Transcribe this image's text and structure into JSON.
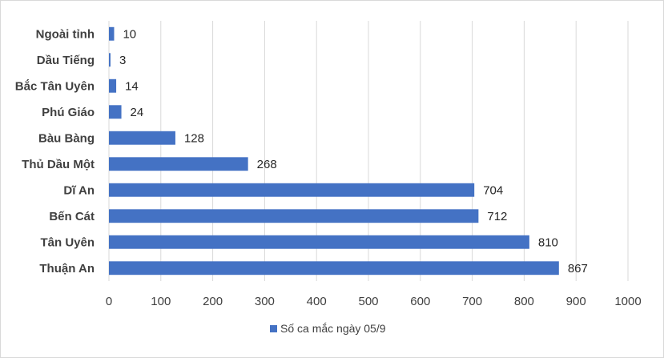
{
  "chart_data": {
    "type": "bar",
    "orientation": "horizontal",
    "categories": [
      "Ngoài tỉnh",
      "Dầu Tiếng",
      "Bắc Tân Uyên",
      "Phú Giáo",
      "Bàu Bàng",
      "Thủ Dầu Một",
      "Dĩ An",
      "Bến Cát",
      "Tân Uyên",
      "Thuận An"
    ],
    "series": [
      {
        "name": "Số ca mắc ngày 05/9",
        "values": [
          10,
          3,
          14,
          24,
          128,
          268,
          704,
          712,
          810,
          867
        ],
        "color": "#4472c4"
      }
    ],
    "xlim": [
      0,
      1000
    ],
    "x_ticks": [
      0,
      100,
      200,
      300,
      400,
      500,
      600,
      700,
      800,
      900,
      1000
    ],
    "grid": true,
    "legend_position": "bottom"
  }
}
